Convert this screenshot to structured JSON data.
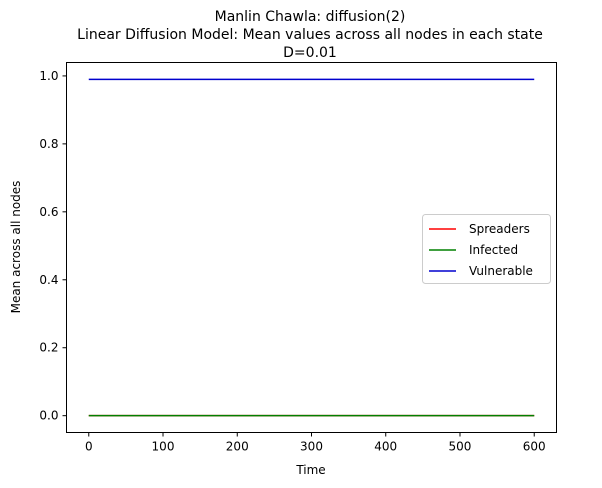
{
  "chart_data": {
    "type": "line",
    "title_lines": [
      "Manlin Chawla: diffusion(2)",
      "Linear Diffusion Model: Mean values across all nodes in each state",
      "D=0.01"
    ],
    "xlabel": "Time",
    "ylabel": "Mean across all nodes",
    "xlim": [
      -30,
      630
    ],
    "ylim": [
      -0.0495,
      1.0395
    ],
    "xticks": [
      0,
      100,
      200,
      300,
      400,
      500,
      600
    ],
    "yticks": [
      0.0,
      0.2,
      0.4,
      0.6,
      0.8,
      1.0
    ],
    "xtick_labels": [
      "0",
      "100",
      "200",
      "300",
      "400",
      "500",
      "600"
    ],
    "ytick_labels": [
      "0.0",
      "0.2",
      "0.4",
      "0.6",
      "0.8",
      "1.0"
    ],
    "legend_position": "center-right",
    "grid": false,
    "series": [
      {
        "name": "Spreaders",
        "color": "#ff0000",
        "x": [
          0,
          600
        ],
        "y": [
          0.0,
          0.0
        ]
      },
      {
        "name": "Infected",
        "color": "#008000",
        "x": [
          0,
          600
        ],
        "y": [
          0.0,
          0.0
        ]
      },
      {
        "name": "Vulnerable",
        "color": "#0000cd",
        "x": [
          0,
          600
        ],
        "y": [
          0.99,
          0.99
        ]
      }
    ]
  }
}
